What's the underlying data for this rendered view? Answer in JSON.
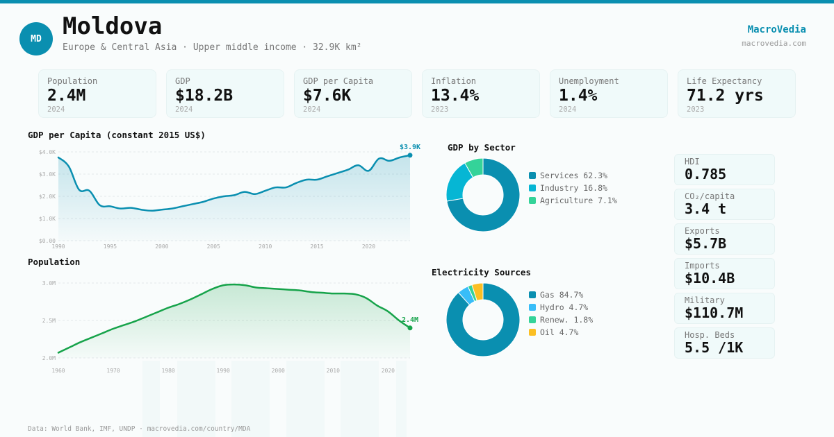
{
  "header": {
    "avatar_initials": "MD",
    "country": "Moldova",
    "subtitle": "Europe & Central Asia · Upper middle income · 32.9K km²",
    "brand": "MacroVedia",
    "brand_url": "macrovedia.com"
  },
  "colors": {
    "accent": "#0a8fb0",
    "population_line": "#16a34a",
    "services": "#0a8fb0",
    "industry": "#06b6d4",
    "agriculture": "#34d399",
    "gas": "#0a8fb0",
    "hydro": "#38bdf8",
    "renewables": "#34d399",
    "oil": "#fbbf24"
  },
  "kpis": [
    {
      "label": "Population",
      "value": "2.4M",
      "year": "2024"
    },
    {
      "label": "GDP",
      "value": "$18.2B",
      "year": "2024"
    },
    {
      "label": "GDP per Capita",
      "value": "$7.6K",
      "year": "2024"
    },
    {
      "label": "Inflation",
      "value": "13.4%",
      "year": "2023"
    },
    {
      "label": "Unemployment",
      "value": "1.4%",
      "year": "2024"
    },
    {
      "label": "Life Expectancy",
      "value": "71.2 yrs",
      "year": "2023"
    }
  ],
  "side_stats": [
    {
      "label": "HDI",
      "value": "0.785"
    },
    {
      "label": "CO₂/capita",
      "value": "3.4 t"
    },
    {
      "label": "Exports",
      "value": "$5.7B"
    },
    {
      "label": "Imports",
      "value": "$10.4B"
    },
    {
      "label": "Military",
      "value": "$110.7M"
    },
    {
      "label": "Hosp. Beds",
      "value": "5.5 /1K"
    }
  ],
  "footer": "Data: World Bank, IMF, UNDP · macrovedia.com/country/MDA",
  "chart_data": [
    {
      "id": "gdp_per_capita",
      "type": "area",
      "title": "GDP per Capita (constant 2015 US$)",
      "xlabel": "",
      "ylabel": "",
      "x": [
        1990,
        1991,
        1992,
        1993,
        1994,
        1995,
        1996,
        1997,
        1998,
        1999,
        2000,
        2001,
        2002,
        2003,
        2004,
        2005,
        2006,
        2007,
        2008,
        2009,
        2010,
        2011,
        2012,
        2013,
        2014,
        2015,
        2016,
        2017,
        2018,
        2019,
        2020,
        2021,
        2022,
        2023,
        2024
      ],
      "values": [
        3750,
        3350,
        2300,
        2250,
        1600,
        1550,
        1450,
        1480,
        1400,
        1350,
        1400,
        1450,
        1550,
        1650,
        1750,
        1900,
        2000,
        2050,
        2200,
        2100,
        2250,
        2400,
        2400,
        2600,
        2750,
        2750,
        2900,
        3050,
        3200,
        3400,
        3150,
        3700,
        3600,
        3750,
        3850
      ],
      "ylim": [
        0,
        4000
      ],
      "yticks": [
        "$0.00",
        "$1.0K",
        "$2.0K",
        "$3.0K",
        "$4.0K"
      ],
      "ytick_values": [
        0,
        1000,
        2000,
        3000,
        4000
      ],
      "xticks": [
        1990,
        1995,
        2000,
        2005,
        2010,
        2015,
        2020
      ],
      "end_label": "$3.9K",
      "grid": true
    },
    {
      "id": "population",
      "type": "area",
      "title": "Population",
      "xlabel": "",
      "ylabel": "",
      "x": [
        1960,
        1962,
        1964,
        1966,
        1968,
        1970,
        1972,
        1974,
        1976,
        1978,
        1980,
        1982,
        1984,
        1986,
        1988,
        1990,
        1992,
        1994,
        1996,
        1998,
        2000,
        2002,
        2004,
        2006,
        2008,
        2010,
        2012,
        2014,
        2016,
        2018,
        2020,
        2022,
        2024
      ],
      "values": [
        2.07,
        2.14,
        2.21,
        2.27,
        2.33,
        2.39,
        2.44,
        2.49,
        2.55,
        2.61,
        2.67,
        2.72,
        2.78,
        2.85,
        2.92,
        2.97,
        2.98,
        2.97,
        2.94,
        2.93,
        2.92,
        2.91,
        2.9,
        2.88,
        2.87,
        2.86,
        2.86,
        2.85,
        2.8,
        2.7,
        2.62,
        2.5,
        2.4
      ],
      "ylim": [
        2.0,
        3.0
      ],
      "yticks": [
        "2.0M",
        "2.5M",
        "3.0M"
      ],
      "ytick_values": [
        2.0,
        2.5,
        3.0
      ],
      "xticks": [
        1960,
        1970,
        1980,
        1990,
        2000,
        2010,
        2020
      ],
      "end_label": "2.4M",
      "grid": true
    },
    {
      "id": "gdp_by_sector",
      "type": "pie",
      "title": "GDP by Sector",
      "categories": [
        "Services",
        "Industry",
        "Agriculture"
      ],
      "values": [
        62.3,
        16.8,
        7.1
      ],
      "labels": [
        "Services 62.3%",
        "Industry 16.8%",
        "Agriculture 7.1%"
      ],
      "legend": "right"
    },
    {
      "id": "electricity_sources",
      "type": "pie",
      "title": "Electricity Sources",
      "categories": [
        "Gas",
        "Hydro",
        "Renew.",
        "Oil"
      ],
      "values": [
        84.7,
        4.7,
        1.8,
        4.7
      ],
      "labels": [
        "Gas 84.7%",
        "Hydro 4.7%",
        "Renew. 1.8%",
        "Oil 4.7%"
      ],
      "legend": "right"
    }
  ]
}
